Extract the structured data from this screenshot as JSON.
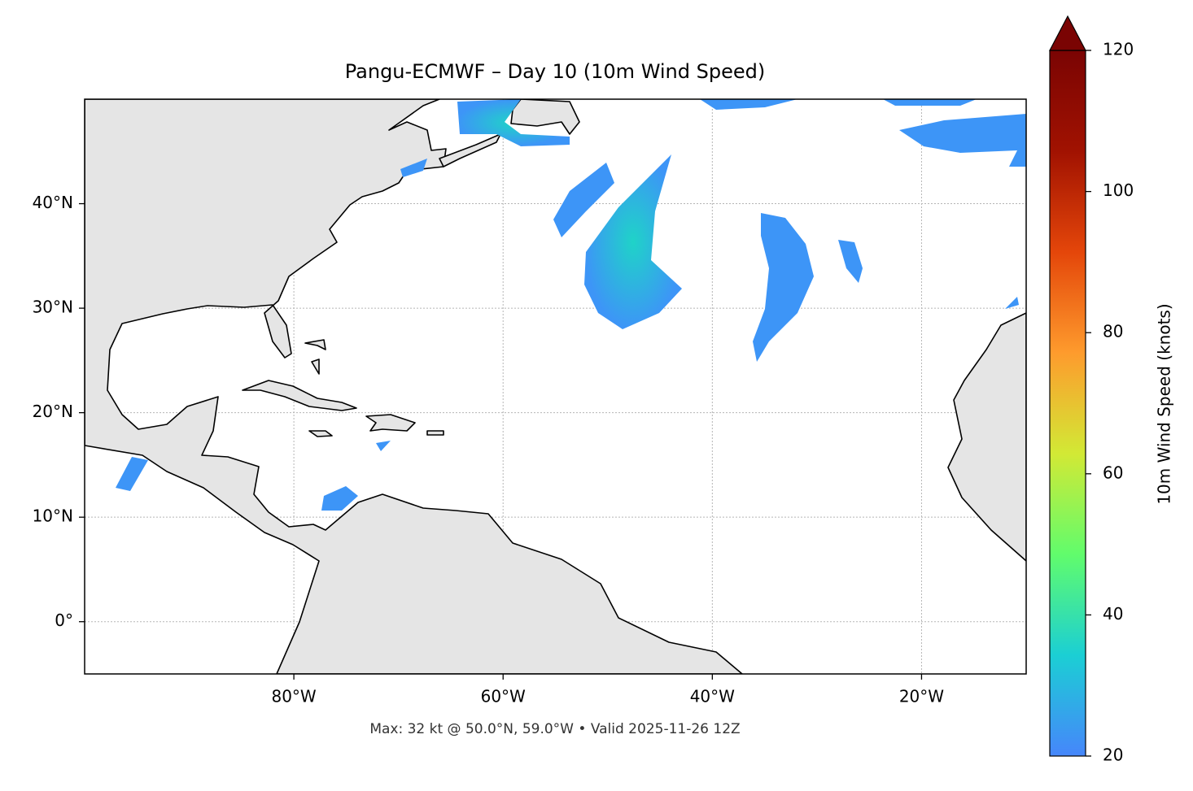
{
  "chart_data": {
    "type": "map",
    "title": "Pangu-ECMWF – Day 10 (10m Wind Speed)",
    "caption": "Max: 32 kt @ 50.0°N, 59.0°W • Valid 2025-11-26 12Z",
    "xlim": [
      -100,
      -10
    ],
    "ylim": [
      -5,
      50
    ],
    "xticks": [
      {
        "value": -80,
        "label": "80°W"
      },
      {
        "value": -60,
        "label": "60°W"
      },
      {
        "value": -40,
        "label": "40°W"
      },
      {
        "value": -20,
        "label": "20°W"
      }
    ],
    "yticks": [
      {
        "value": 0,
        "label": "0°"
      },
      {
        "value": 10,
        "label": "10°N"
      },
      {
        "value": 20,
        "label": "20°N"
      },
      {
        "value": 30,
        "label": "30°N"
      },
      {
        "value": 40,
        "label": "40°N"
      }
    ],
    "grid": true,
    "colorbar": {
      "label": "10m Wind Speed (knots)",
      "lim": [
        20,
        120
      ],
      "ticks": [
        20,
        40,
        60,
        80,
        100,
        120
      ],
      "colors": [
        "#4686fb",
        "#1bcfd4",
        "#61fc6c",
        "#d2e935",
        "#fe9b2d",
        "#e4460a",
        "#a11201",
        "#7a0403"
      ]
    }
  }
}
